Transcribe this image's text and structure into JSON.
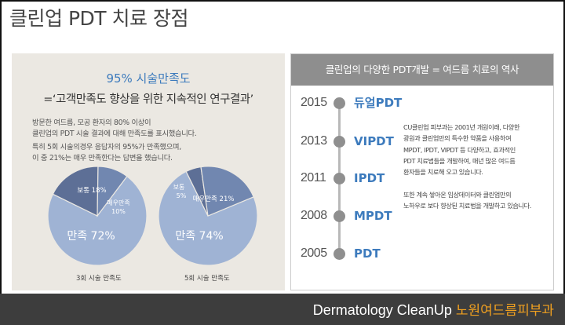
{
  "page": {
    "title": "클린업 PDT 치료 장점"
  },
  "satisfaction": {
    "title": "95% 시술만족도",
    "subtitle": "=‘고객만족도 향상을 위한 지속적인 연구결과’",
    "paragraph1_line1": "방문한 여드름, 모공 환자의 80% 이상이",
    "paragraph1_line2": "클린업의 PDT 시술 결과에 대해 만족도를 표시했습니다.",
    "paragraph2_line1": "특히 5회 시술의경우 응답자의 95%가 만족했으며,",
    "paragraph2_line2": "이 중 21%는 매우 만족한다는 답변을 했습니다."
  },
  "chart_data": [
    {
      "type": "pie",
      "title": "3회 시술 만족도",
      "slices": [
        {
          "label": "만족",
          "value": 72,
          "display": "만족 72%"
        },
        {
          "label": "보통",
          "value": 18,
          "display": "보통 18%"
        },
        {
          "label": "매우만족",
          "value": 10,
          "display_line1": "매우만족",
          "display_line2": "10%"
        }
      ],
      "colors": {
        "main": "#9fb3d4",
        "mid": "#7187b0",
        "dark": "#5d6f96"
      }
    },
    {
      "type": "pie",
      "title": "5회 시술 만족도",
      "slices": [
        {
          "label": "만족",
          "value": 74,
          "display": "만족 74%"
        },
        {
          "label": "보통",
          "value": 5,
          "display_line1": "보통",
          "display_line2": "5%"
        },
        {
          "label": "매우만족",
          "value": 21,
          "display": "매우만족 21%"
        }
      ],
      "colors": {
        "main": "#9fb3d4",
        "mid": "#7187b0",
        "dark": "#5d6f96"
      }
    }
  ],
  "history": {
    "header": "클린업의 다양한 PDT개발 = 여드름 치료의 역사",
    "timeline": [
      {
        "year": "2015",
        "label": "듀얼PDT"
      },
      {
        "year": "2013",
        "label": "VIPDT"
      },
      {
        "year": "2011",
        "label": "IPDT"
      },
      {
        "year": "2008",
        "label": "MPDT"
      },
      {
        "year": "2005",
        "label": "PDT"
      }
    ],
    "description1": [
      "CU클린업 피부과는 2001년 개원이래, 다양한",
      "광원과 클린업만의 특수한 약품을 사용하여",
      "MPDT, IPDT, VIPDT 등 다양하고, 효과적인",
      "PDT 치료법들을 개발하여, 매년 많은 여드름",
      "환자들을 치료해 오고 있습니다."
    ],
    "description2": [
      "또한 계속 쌓아온 임상데이터와 클린업만의",
      "노하우로 보다 향상된 치료법을 개발하고 있습니다."
    ]
  },
  "footer": {
    "brand_en": "Dermatology CleanUp",
    "brand_ko": "노원여드름피부과"
  },
  "colors": {
    "accent_blue": "#3d7bbd",
    "footer_bg": "#3d3d3d",
    "footer_ko": "#f0a020",
    "panel_bg": "#ebe8e2",
    "header_grey": "#8e8e8e"
  }
}
